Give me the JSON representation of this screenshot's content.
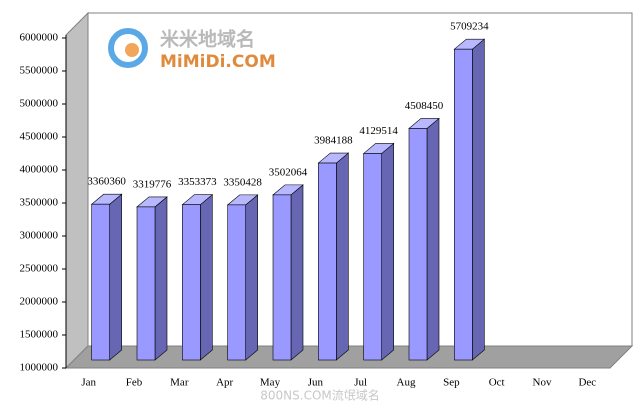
{
  "chart_data": {
    "type": "bar3d",
    "categories": [
      "Jan",
      "Feb",
      "Mar",
      "Apr",
      "May",
      "Jun",
      "Jul",
      "Aug",
      "Sep",
      "Oct",
      "Nov",
      "Dec"
    ],
    "values": [
      3360360,
      3319776,
      3353373,
      3350428,
      3502064,
      3984188,
      4129514,
      4508450,
      5709234,
      null,
      null,
      null
    ],
    "color": "#9999ff",
    "ylim": [
      1000000,
      6000000
    ],
    "yticks": [
      1000000,
      1500000,
      2000000,
      2500000,
      3000000,
      3500000,
      4000000,
      4500000,
      5000000,
      5500000,
      6000000
    ],
    "grid": false
  },
  "watermarks": [
    "米米地域名",
    "MiMiDi.COM",
    "800NS.COM流氓域名"
  ]
}
